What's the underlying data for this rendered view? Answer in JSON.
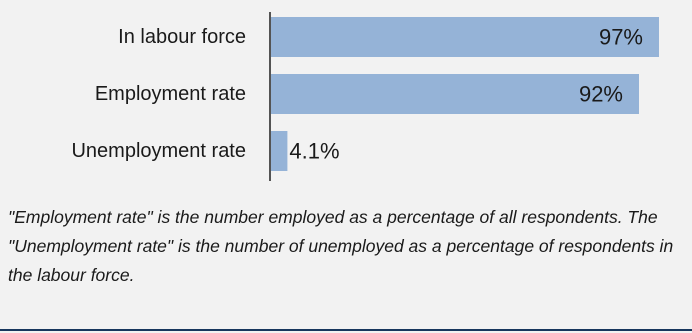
{
  "chart_data": {
    "type": "bar",
    "orientation": "horizontal",
    "categories": [
      "In labour force",
      "Employment rate",
      "Unemployment rate"
    ],
    "values": [
      97,
      92,
      4.1
    ],
    "value_labels": [
      "97%",
      "92%",
      "4.1%"
    ],
    "xlim": [
      0,
      100
    ],
    "bar_color": "#95b3d7",
    "grid": false
  },
  "note": "\"Employment rate\" is the number employed as a percentage of all respondents. The \"Unemployment rate\" is the number of unemployed as a percentage of respondents in the labour force.",
  "colors": {
    "background": "#f2f2f2",
    "bar": "#95b3d7",
    "axis": "#1f1f1f",
    "rule": "#17365d"
  }
}
